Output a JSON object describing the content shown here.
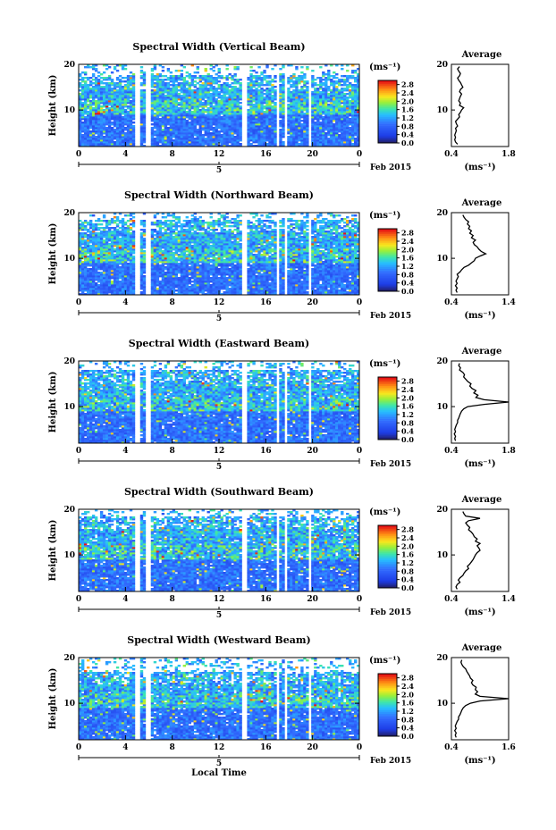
{
  "chart_data": [
    {
      "type": "heatmap",
      "title": "Spectral Width (Vertical Beam)",
      "ylabel": "Height (km)",
      "xticks": [
        "0",
        "4",
        "8",
        "12",
        "16",
        "20",
        "0"
      ],
      "yticks": [
        "10",
        "20"
      ],
      "date_label": "Feb 2015",
      "day_label": "5",
      "xlim": [
        0,
        24
      ],
      "ylim": [
        2,
        20
      ],
      "colorbar": {
        "unit": "(ms⁻¹)",
        "ticks": [
          "0.0",
          "0.4",
          "0.8",
          "1.2",
          "1.6",
          "2.0",
          "2.4",
          "2.8"
        ],
        "range": [
          0,
          3.0
        ]
      },
      "average": {
        "title": "Average",
        "xlabel": "(ms⁻¹)",
        "xticks": [
          "0.4",
          "1.8"
        ],
        "yticks": [
          "10",
          "20"
        ],
        "xlim": [
          0.4,
          1.8
        ],
        "height": [
          2.5,
          3,
          3.5,
          4,
          4.5,
          5,
          5.5,
          6,
          6.5,
          7,
          7.5,
          8,
          8.5,
          9,
          9.5,
          10,
          10.5,
          11,
          11.5,
          12,
          12.5,
          13,
          13.5,
          14,
          14.5,
          15,
          15.5,
          16,
          16.5,
          17,
          17.5,
          18,
          18.5,
          19,
          19.5
        ],
        "values": [
          0.55,
          0.5,
          0.48,
          0.5,
          0.48,
          0.5,
          0.52,
          0.5,
          0.55,
          0.52,
          0.5,
          0.55,
          0.6,
          0.58,
          0.62,
          0.65,
          0.7,
          0.6,
          0.62,
          0.58,
          0.6,
          0.62,
          0.65,
          0.6,
          0.62,
          0.68,
          0.65,
          0.62,
          0.58,
          0.55,
          0.6,
          0.62,
          0.58,
          0.55,
          0.6
        ]
      }
    },
    {
      "type": "heatmap",
      "title": "Spectral Width (Northward Beam)",
      "ylabel": "Height (km)",
      "xticks": [
        "0",
        "4",
        "8",
        "12",
        "16",
        "20",
        "0"
      ],
      "yticks": [
        "10",
        "20"
      ],
      "date_label": "Feb 2015",
      "day_label": "5",
      "xlim": [
        0,
        24
      ],
      "ylim": [
        2,
        20
      ],
      "colorbar": {
        "unit": "(ms⁻¹)",
        "ticks": [
          "0.0",
          "0.4",
          "0.8",
          "1.2",
          "1.6",
          "2.0",
          "2.4",
          "2.8"
        ],
        "range": [
          0,
          3.0
        ]
      },
      "average": {
        "title": "Average",
        "xlabel": "(ms⁻¹)",
        "xticks": [
          "0.4",
          "1.4"
        ],
        "yticks": [
          "10",
          "20"
        ],
        "xlim": [
          0.4,
          1.4
        ],
        "height": [
          2.5,
          3,
          3.5,
          4,
          4.5,
          5,
          5.5,
          6,
          6.5,
          7,
          7.5,
          8,
          8.5,
          9,
          9.5,
          10,
          10.5,
          11,
          11.5,
          12,
          12.5,
          13,
          13.5,
          14,
          14.5,
          15,
          15.5,
          16,
          16.5,
          17,
          17.5,
          18,
          18.5,
          19,
          19.5
        ],
        "values": [
          0.5,
          0.48,
          0.5,
          0.47,
          0.5,
          0.48,
          0.5,
          0.52,
          0.5,
          0.55,
          0.58,
          0.62,
          0.7,
          0.75,
          0.8,
          0.82,
          0.9,
          1.0,
          0.92,
          0.88,
          0.85,
          0.8,
          0.78,
          0.82,
          0.75,
          0.78,
          0.72,
          0.75,
          0.7,
          0.72,
          0.68,
          0.7,
          0.65,
          0.62,
          0.6
        ]
      }
    },
    {
      "type": "heatmap",
      "title": "Spectral Width (Eastward Beam)",
      "ylabel": "Height (km)",
      "xticks": [
        "0",
        "4",
        "8",
        "12",
        "16",
        "20",
        "0"
      ],
      "yticks": [
        "10",
        "20"
      ],
      "date_label": "Feb 2015",
      "day_label": "5",
      "xlim": [
        0,
        24
      ],
      "ylim": [
        2,
        20
      ],
      "colorbar": {
        "unit": "(ms⁻¹)",
        "ticks": [
          "0.0",
          "0.4",
          "0.8",
          "1.2",
          "1.6",
          "2.0",
          "2.4",
          "2.8"
        ],
        "range": [
          0,
          3.0
        ]
      },
      "average": {
        "title": "Average",
        "xlabel": "(ms⁻¹)",
        "xticks": [
          "0.4",
          "1.8"
        ],
        "yticks": [
          "10",
          "20"
        ],
        "xlim": [
          0.4,
          1.8
        ],
        "height": [
          2.5,
          3,
          3.5,
          4,
          4.5,
          5,
          5.5,
          6,
          6.5,
          7,
          7.5,
          8,
          8.5,
          9,
          9.5,
          10,
          10.5,
          11,
          11.5,
          12,
          12.5,
          13,
          13.5,
          14,
          14.5,
          15,
          15.5,
          16,
          16.5,
          17,
          17.5,
          18,
          18.5,
          19,
          19.5
        ],
        "values": [
          0.5,
          0.48,
          0.5,
          0.47,
          0.5,
          0.48,
          0.5,
          0.52,
          0.55,
          0.55,
          0.58,
          0.6,
          0.62,
          0.65,
          0.7,
          0.8,
          1.2,
          1.8,
          1.2,
          1.0,
          1.05,
          0.95,
          1.0,
          0.9,
          0.85,
          0.88,
          0.8,
          0.75,
          0.7,
          0.72,
          0.68,
          0.6,
          0.62,
          0.58,
          0.6
        ]
      }
    },
    {
      "type": "heatmap",
      "title": "Spectral Width (Southward Beam)",
      "ylabel": "Height (km)",
      "xticks": [
        "0",
        "4",
        "8",
        "12",
        "16",
        "20",
        "0"
      ],
      "yticks": [
        "10",
        "20"
      ],
      "date_label": "Feb 2015",
      "day_label": "5",
      "xlim": [
        0,
        24
      ],
      "ylim": [
        2,
        20
      ],
      "colorbar": {
        "unit": "(ms⁻¹)",
        "ticks": [
          "0.0",
          "0.4",
          "0.8",
          "1.2",
          "1.6",
          "2.0",
          "2.4",
          "2.8"
        ],
        "range": [
          0,
          3.0
        ]
      },
      "average": {
        "title": "Average",
        "xlabel": "(ms⁻¹)",
        "xticks": [
          "0.4",
          "1.4"
        ],
        "yticks": [
          "10",
          "20"
        ],
        "xlim": [
          0.4,
          1.4
        ],
        "height": [
          2.5,
          3,
          3.5,
          4,
          4.5,
          5,
          5.5,
          6,
          6.5,
          7,
          7.5,
          8,
          8.5,
          9,
          9.5,
          10,
          10.5,
          11,
          11.5,
          12,
          12.5,
          13,
          13.5,
          14,
          14.5,
          15,
          15.5,
          16,
          16.5,
          17,
          17.5,
          18,
          18.5,
          19,
          19.5
        ],
        "values": [
          0.5,
          0.48,
          0.5,
          0.55,
          0.52,
          0.55,
          0.6,
          0.62,
          0.65,
          0.7,
          0.68,
          0.72,
          0.75,
          0.78,
          0.8,
          0.82,
          0.85,
          0.9,
          0.88,
          0.85,
          0.9,
          0.82,
          0.85,
          0.8,
          0.78,
          0.75,
          0.7,
          0.72,
          0.68,
          0.65,
          0.7,
          0.9,
          0.65,
          0.62,
          0.6
        ]
      }
    },
    {
      "type": "heatmap",
      "title": "Spectral Width (Westward Beam)",
      "ylabel": "Height (km)",
      "xlabel": "Local Time",
      "xticks": [
        "0",
        "4",
        "8",
        "12",
        "16",
        "20",
        "0"
      ],
      "yticks": [
        "10",
        "20"
      ],
      "date_label": "Feb 2015",
      "day_label": "5",
      "xlim": [
        0,
        24
      ],
      "ylim": [
        2,
        20
      ],
      "colorbar": {
        "unit": "(ms⁻¹)",
        "ticks": [
          "0.0",
          "0.4",
          "0.8",
          "1.2",
          "1.6",
          "2.0",
          "2.4",
          "2.8"
        ],
        "range": [
          0,
          3.0
        ]
      },
      "average": {
        "title": "Average",
        "xlabel": "(ms⁻¹)",
        "xticks": [
          "0.4",
          "1.6"
        ],
        "yticks": [
          "10",
          "20"
        ],
        "xlim": [
          0.4,
          1.6
        ],
        "height": [
          2.5,
          3,
          3.5,
          4,
          4.5,
          5,
          5.5,
          6,
          6.5,
          7,
          7.5,
          8,
          8.5,
          9,
          9.5,
          10,
          10.5,
          11,
          11.5,
          12,
          12.5,
          13,
          13.5,
          14,
          14.5,
          15,
          15.5,
          16,
          16.5,
          17,
          17.5,
          18,
          18.5,
          19,
          19.5
        ],
        "values": [
          0.5,
          0.48,
          0.5,
          0.47,
          0.5,
          0.48,
          0.5,
          0.52,
          0.55,
          0.55,
          0.58,
          0.6,
          0.62,
          0.65,
          0.7,
          0.8,
          1.0,
          1.6,
          1.0,
          0.9,
          0.95,
          0.9,
          0.92,
          0.85,
          0.82,
          0.85,
          0.8,
          0.78,
          0.75,
          0.72,
          0.7,
          0.65,
          0.62,
          0.6,
          0.62
        ]
      }
    }
  ]
}
